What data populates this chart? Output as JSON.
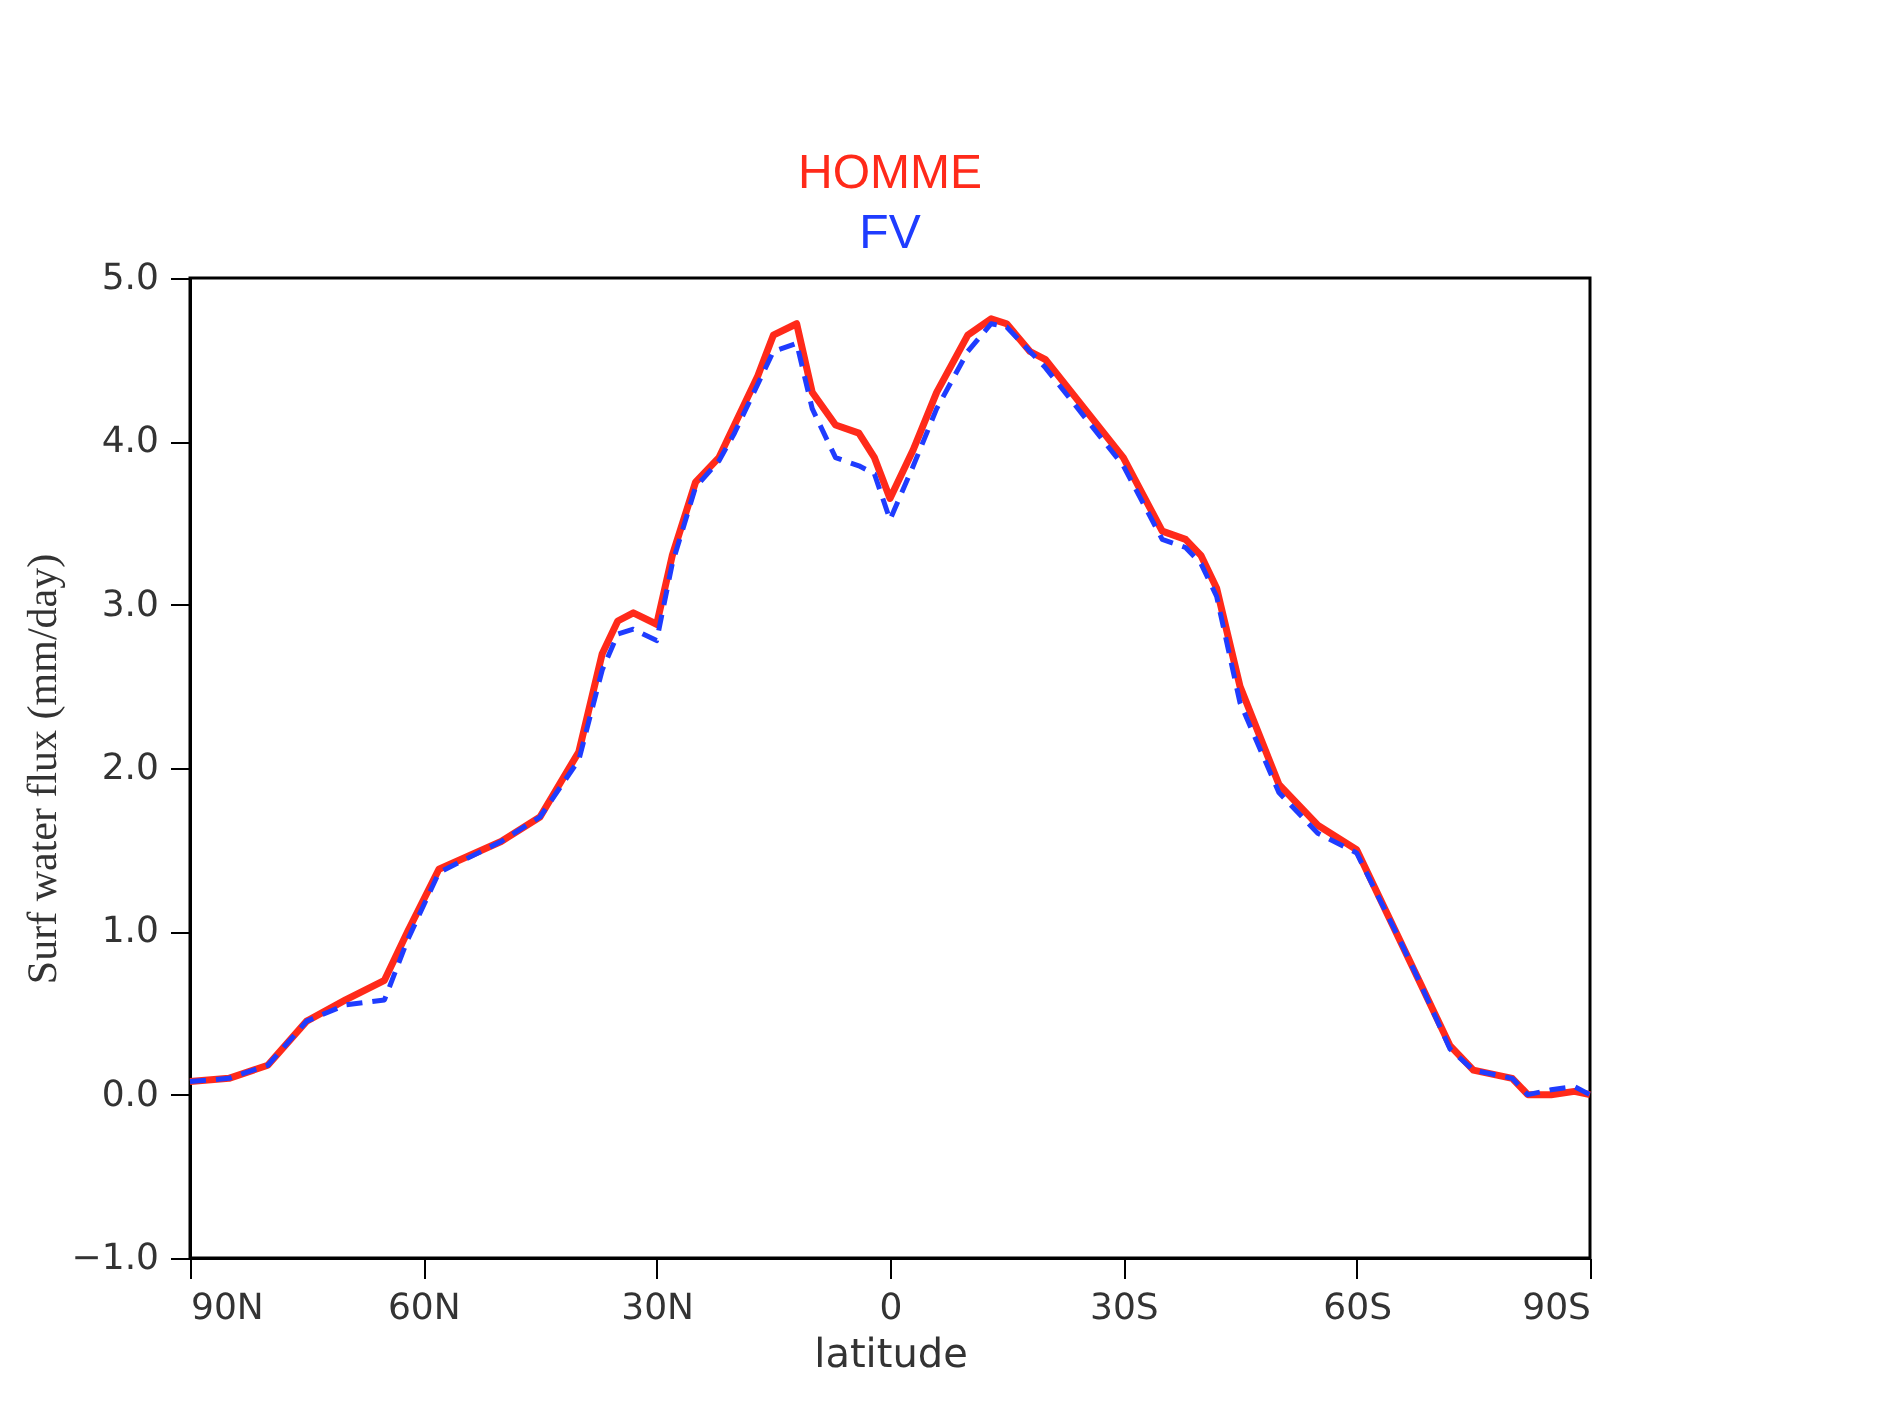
{
  "chart_data": {
    "type": "line",
    "xlabel": "latitude",
    "ylabel": "Surf water flux (mm/day)",
    "xlim": [
      90,
      -90
    ],
    "xticks": [
      {
        "value": 90,
        "label": "90N"
      },
      {
        "value": 60,
        "label": "60N"
      },
      {
        "value": 30,
        "label": "30N"
      },
      0,
      {
        "value": -30,
        "label": "30S"
      },
      {
        "value": -60,
        "label": "60S"
      },
      {
        "value": -90,
        "label": "90S"
      }
    ],
    "ylim": [
      -1,
      5
    ],
    "yticks": [
      {
        "value": -1,
        "label": "−1.0"
      },
      {
        "value": 0,
        "label": "0.0"
      },
      {
        "value": 1,
        "label": "1.0"
      },
      {
        "value": 2,
        "label": "2.0"
      },
      {
        "value": 3,
        "label": "3.0"
      },
      {
        "value": 4,
        "label": "4.0"
      },
      {
        "value": 5,
        "label": "5.0"
      }
    ],
    "grid": false,
    "legend": "top",
    "x": [
      90,
      85,
      80,
      75,
      70,
      65,
      62,
      58,
      50,
      45,
      40,
      37,
      35,
      33,
      30,
      28,
      25,
      22,
      20,
      17,
      15,
      12,
      10,
      7,
      4,
      2,
      0,
      -3,
      -6,
      -10,
      -13,
      -15,
      -18,
      -20,
      -25,
      -30,
      -35,
      -38,
      -40,
      -42,
      -45,
      -50,
      -55,
      -60,
      -65,
      -68,
      -72,
      -75,
      -80,
      -82,
      -85,
      -88,
      -90
    ],
    "series": [
      {
        "name": "HOMME",
        "color": "#ff2a1a",
        "line_style": "solid",
        "values": [
          0.08,
          0.1,
          0.18,
          0.45,
          0.58,
          0.7,
          1.0,
          1.38,
          1.55,
          1.7,
          2.1,
          2.7,
          2.9,
          2.95,
          2.88,
          3.3,
          3.75,
          3.9,
          4.1,
          4.4,
          4.65,
          4.72,
          4.3,
          4.1,
          4.05,
          3.9,
          3.65,
          3.95,
          4.3,
          4.65,
          4.75,
          4.72,
          4.55,
          4.5,
          4.2,
          3.9,
          3.45,
          3.4,
          3.3,
          3.1,
          2.5,
          1.9,
          1.65,
          1.5,
          1.0,
          0.7,
          0.3,
          0.15,
          0.1,
          0.0,
          0.0,
          0.02,
          0.0
        ]
      },
      {
        "name": "FV",
        "color": "#1f3cff",
        "line_style": "dashed",
        "values": [
          0.08,
          0.1,
          0.18,
          0.45,
          0.55,
          0.58,
          0.95,
          1.36,
          1.55,
          1.7,
          2.05,
          2.6,
          2.82,
          2.85,
          2.78,
          3.25,
          3.72,
          3.88,
          4.05,
          4.35,
          4.55,
          4.6,
          4.2,
          3.9,
          3.85,
          3.8,
          3.52,
          3.85,
          4.2,
          4.55,
          4.72,
          4.7,
          4.55,
          4.45,
          4.15,
          3.85,
          3.4,
          3.35,
          3.25,
          3.05,
          2.4,
          1.85,
          1.6,
          1.48,
          1.0,
          0.7,
          0.28,
          0.15,
          0.1,
          0.0,
          0.03,
          0.05,
          0.0
        ]
      }
    ]
  }
}
